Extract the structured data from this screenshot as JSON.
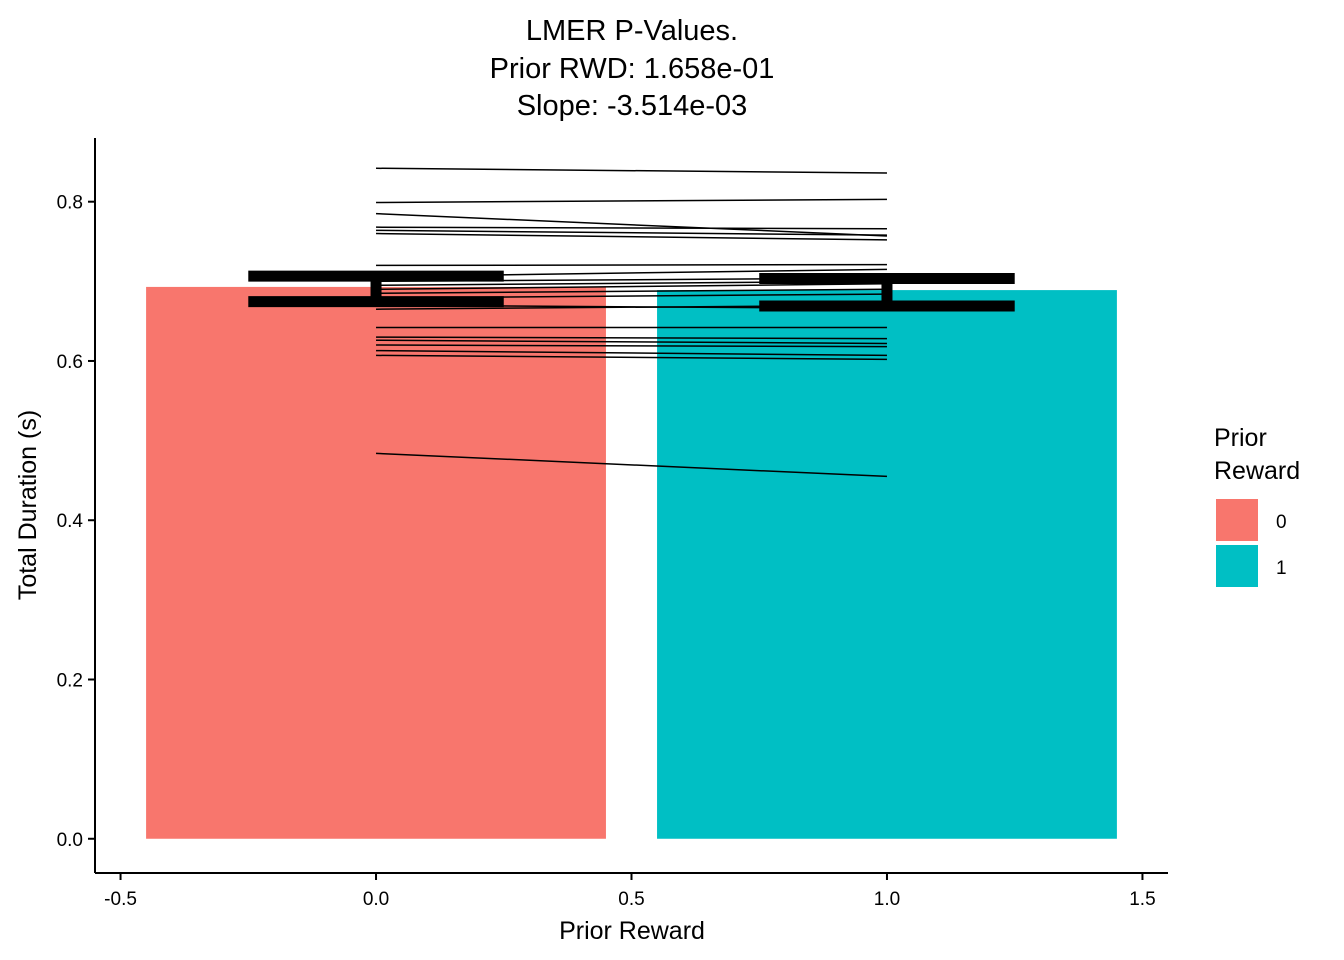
{
  "chart_data": {
    "type": "bar",
    "title_lines": [
      "LMER P-Values.",
      "Prior RWD:  1.658e-01",
      "Slope:  -3.514e-03"
    ],
    "xlabel": "Prior Reward",
    "ylabel": "Total Duration (s)",
    "xlim": [
      -0.55,
      1.55
    ],
    "ylim": [
      -0.043,
      0.88
    ],
    "x_ticks": [
      -0.5,
      0.0,
      0.5,
      1.0,
      1.5
    ],
    "x_tick_labels": [
      "-0.5",
      "0.0",
      "0.5",
      "1.0",
      "1.5"
    ],
    "y_ticks": [
      0.0,
      0.2,
      0.4,
      0.6,
      0.8
    ],
    "y_tick_labels": [
      "0.0",
      "0.2",
      "0.4",
      "0.6",
      "0.8"
    ],
    "grid": false,
    "legend": {
      "title_lines": [
        "Prior",
        "Reward"
      ],
      "placement": "right",
      "entries": [
        {
          "label": "0",
          "color": "#F8766D"
        },
        {
          "label": "1",
          "color": "#00BFC4"
        }
      ]
    },
    "bars": [
      {
        "category": "0",
        "x": 0,
        "width": 0.9,
        "value": 0.693,
        "color": "#F8766D"
      },
      {
        "category": "1",
        "x": 1,
        "width": 0.9,
        "value": 0.689,
        "color": "#00BFC4"
      }
    ],
    "error_bars": [
      {
        "x": 0,
        "ymin": 0.6745,
        "ymax": 0.7065,
        "half_width": 0.25
      },
      {
        "x": 1,
        "ymin": 0.669,
        "ymax": 0.7035,
        "half_width": 0.25
      }
    ],
    "subject_lines": [
      {
        "x": [
          0,
          1
        ],
        "y": [
          0.842,
          0.836
        ]
      },
      {
        "x": [
          0,
          1
        ],
        "y": [
          0.799,
          0.803
        ]
      },
      {
        "x": [
          0,
          1
        ],
        "y": [
          0.785,
          0.757
        ]
      },
      {
        "x": [
          0,
          1
        ],
        "y": [
          0.768,
          0.766
        ]
      },
      {
        "x": [
          0,
          1
        ],
        "y": [
          0.764,
          0.758
        ]
      },
      {
        "x": [
          0,
          1
        ],
        "y": [
          0.76,
          0.752
        ]
      },
      {
        "x": [
          0,
          1
        ],
        "y": [
          0.72,
          0.721
        ]
      },
      {
        "x": [
          0,
          1
        ],
        "y": [
          0.706,
          0.715
        ]
      },
      {
        "x": [
          0,
          1
        ],
        "y": [
          0.7,
          0.704
        ]
      },
      {
        "x": [
          0,
          1
        ],
        "y": [
          0.695,
          0.7
        ]
      },
      {
        "x": [
          0,
          1
        ],
        "y": [
          0.69,
          0.697
        ]
      },
      {
        "x": [
          0,
          1
        ],
        "y": [
          0.685,
          0.69
        ]
      },
      {
        "x": [
          0,
          1
        ],
        "y": [
          0.679,
          0.684
        ]
      },
      {
        "x": [
          0,
          1
        ],
        "y": [
          0.67,
          0.666
        ]
      },
      {
        "x": [
          0,
          1
        ],
        "y": [
          0.665,
          0.67
        ]
      },
      {
        "x": [
          0,
          1
        ],
        "y": [
          0.642,
          0.642
        ]
      },
      {
        "x": [
          0,
          1
        ],
        "y": [
          0.63,
          0.628
        ]
      },
      {
        "x": [
          0,
          1
        ],
        "y": [
          0.626,
          0.622
        ]
      },
      {
        "x": [
          0,
          1
        ],
        "y": [
          0.62,
          0.618
        ]
      },
      {
        "x": [
          0,
          1
        ],
        "y": [
          0.613,
          0.607
        ]
      },
      {
        "x": [
          0,
          1
        ],
        "y": [
          0.607,
          0.602
        ]
      },
      {
        "x": [
          0,
          1
        ],
        "y": [
          0.484,
          0.455
        ]
      }
    ]
  }
}
